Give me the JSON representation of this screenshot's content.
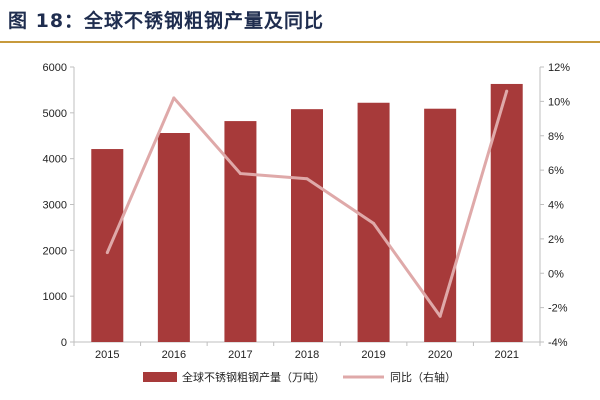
{
  "page": {
    "title": "图 18：全球不锈钢粗钢产量及同比"
  },
  "colors": {
    "title": "#1f2d4f",
    "rule": "#c79a3c",
    "bar": "#a73a3a",
    "line": "#dfa9a9",
    "axis": "#bfbfbf"
  },
  "chart_data": {
    "type": "bar+line",
    "categories": [
      "2015",
      "2016",
      "2017",
      "2018",
      "2019",
      "2020",
      "2021"
    ],
    "series": [
      {
        "name": "全球不锈钢粗钢产量（万吨）",
        "type": "bar",
        "axis": "left",
        "values": [
          4210,
          4560,
          4820,
          5080,
          5220,
          5090,
          5630
        ]
      },
      {
        "name": "同比（右轴）",
        "type": "line",
        "axis": "right",
        "values": [
          1.2,
          10.2,
          5.8,
          5.5,
          2.9,
          -2.5,
          10.6
        ]
      }
    ],
    "y_left": {
      "range": [
        0,
        6000
      ],
      "ticks": [
        "0",
        "1000",
        "2000",
        "3000",
        "4000",
        "5000",
        "6000"
      ]
    },
    "y_right": {
      "range": [
        -4,
        12
      ],
      "ticks": [
        "-4%",
        "-2%",
        "0%",
        "2%",
        "4%",
        "6%",
        "8%",
        "10%",
        "12%"
      ]
    },
    "legend_position": "bottom",
    "grid": false
  }
}
